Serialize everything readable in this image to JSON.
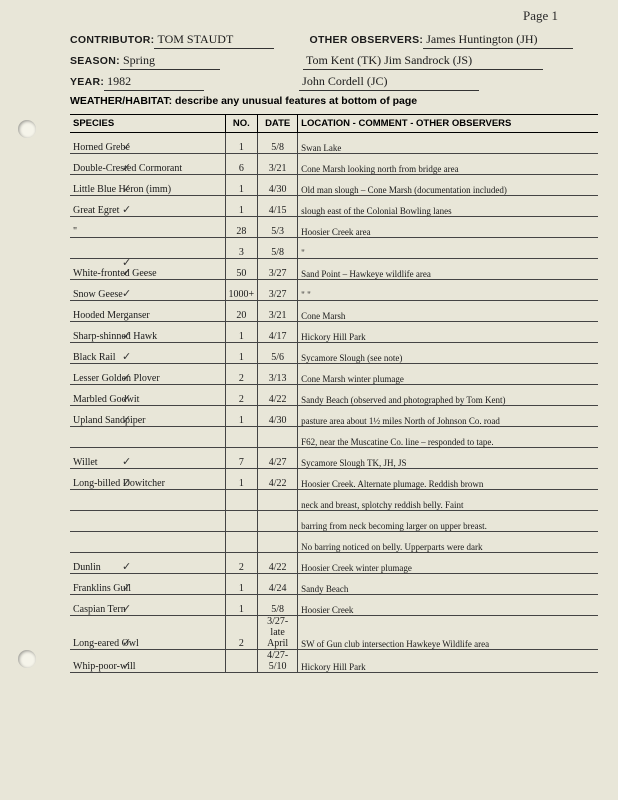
{
  "page_number": "Page 1",
  "header": {
    "contributor_label": "CONTRIBUTOR:",
    "contributor": "TOM STAUDT",
    "season_label": "SEASON:",
    "season": "Spring",
    "year_label": "YEAR:",
    "year": "1982",
    "observers_label": "OTHER OBSERVERS:",
    "observers1": "James Huntington (JH)",
    "observers2": "Tom Kent (TK)   Jim Sandrock (JS)",
    "observers3": "John Cordell (JC)",
    "weather_label": "WEATHER/HABITAT: describe any unusual features at bottom of page"
  },
  "columns": {
    "species": "SPECIES",
    "no": "NO.",
    "date": "DATE",
    "location": "LOCATION - COMMENT - OTHER OBSERVERS"
  },
  "rows": [
    {
      "chk": "✓",
      "species": "Horned Grebe",
      "no": "1",
      "date": "5/8",
      "loc": "Swan Lake"
    },
    {
      "chk": "✓",
      "species": "Double-Crested Cormorant",
      "no": "6",
      "date": "3/21",
      "loc": "Cone Marsh    looking north from bridge area"
    },
    {
      "chk": "✓",
      "species": "Little Blue Heron (imm)",
      "no": "1",
      "date": "4/30",
      "loc": "Old man slough – Cone Marsh (documentation included)"
    },
    {
      "chk": "✓",
      "species": "Great Egret",
      "no": "1",
      "date": "4/15",
      "loc": "slough east of the Colonial Bowling lanes"
    },
    {
      "chk": "",
      "species": "     \"",
      "no": "28",
      "date": "5/3",
      "loc": "Hoosier Creek area"
    },
    {
      "chk": "✓",
      "species": "",
      "no": "3",
      "date": "5/8",
      "loc": "               \""
    },
    {
      "chk": "✓",
      "species": "White-fronted Geese",
      "no": "50",
      "date": "3/27",
      "loc": "Sand Point  –  Hawkeye wildlife area"
    },
    {
      "chk": "✓",
      "species": "Snow Geese",
      "no": "1000+",
      "date": "3/27",
      "loc": "          \"                        \""
    },
    {
      "chk": "",
      "species": "Hooded Merganser",
      "no": "20",
      "date": "3/21",
      "loc": "Cone Marsh"
    },
    {
      "chk": "✓",
      "species": "Sharp-shinned Hawk",
      "no": "1",
      "date": "4/17",
      "loc": "Hickory Hill Park"
    },
    {
      "chk": "✓",
      "species": "Black Rail",
      "no": "1",
      "date": "5/6",
      "loc": "Sycamore Slough  (see note)"
    },
    {
      "chk": "✓",
      "species": "Lesser Golden Plover",
      "no": "2",
      "date": "3/13",
      "loc": "Cone Marsh        winter plumage"
    },
    {
      "chk": "✓",
      "species": "Marbled Godwit",
      "no": "2",
      "date": "4/22",
      "loc": "Sandy Beach   (observed and photographed by Tom Kent)"
    },
    {
      "chk": "✓",
      "species": "Upland Sandpiper",
      "no": "1",
      "date": "4/30",
      "loc": "pasture area about 1½ miles North of Johnson Co. road"
    },
    {
      "chk": "",
      "species": "",
      "no": "",
      "date": "",
      "loc": "F62, near the Muscatine Co. line – responded to tape."
    },
    {
      "chk": "✓",
      "species": "Willet",
      "no": "7",
      "date": "4/27",
      "loc": "Sycamore Slough    TK, JH, JS"
    },
    {
      "chk": "✓",
      "species": "Long-billed Dowitcher",
      "no": "1",
      "date": "4/22",
      "loc": "Hoosier Creek. Alternate plumage. Reddish brown"
    },
    {
      "chk": "",
      "species": "",
      "no": "",
      "date": "",
      "loc": "neck and breast, splotchy reddish belly. Faint"
    },
    {
      "chk": "",
      "species": "",
      "no": "",
      "date": "",
      "loc": "barring from neck becoming larger on upper breast."
    },
    {
      "chk": "",
      "species": "",
      "no": "",
      "date": "",
      "loc": "No barring noticed on belly. Upperparts were dark"
    },
    {
      "chk": "✓",
      "species": "Dunlin",
      "no": "2",
      "date": "4/22",
      "loc": "Hoosier Creek    winter plumage"
    },
    {
      "chk": "✓",
      "species": "Franklins Gull",
      "no": "1",
      "date": "4/24",
      "loc": "Sandy Beach"
    },
    {
      "chk": "✓",
      "species": "Caspian Tern",
      "no": "1",
      "date": "5/8",
      "loc": "Hoosier Creek"
    },
    {
      "chk": "✓",
      "species": "Long-eared Owl",
      "no": "2",
      "date": "3/27-late April",
      "loc": "SW of Gun club intersection   Hawkeye Wildlife area"
    },
    {
      "chk": "✓",
      "species": "Whip-poor-will",
      "no": "",
      "date": "4/27-5/10",
      "loc": "Hickory Hill Park"
    }
  ]
}
